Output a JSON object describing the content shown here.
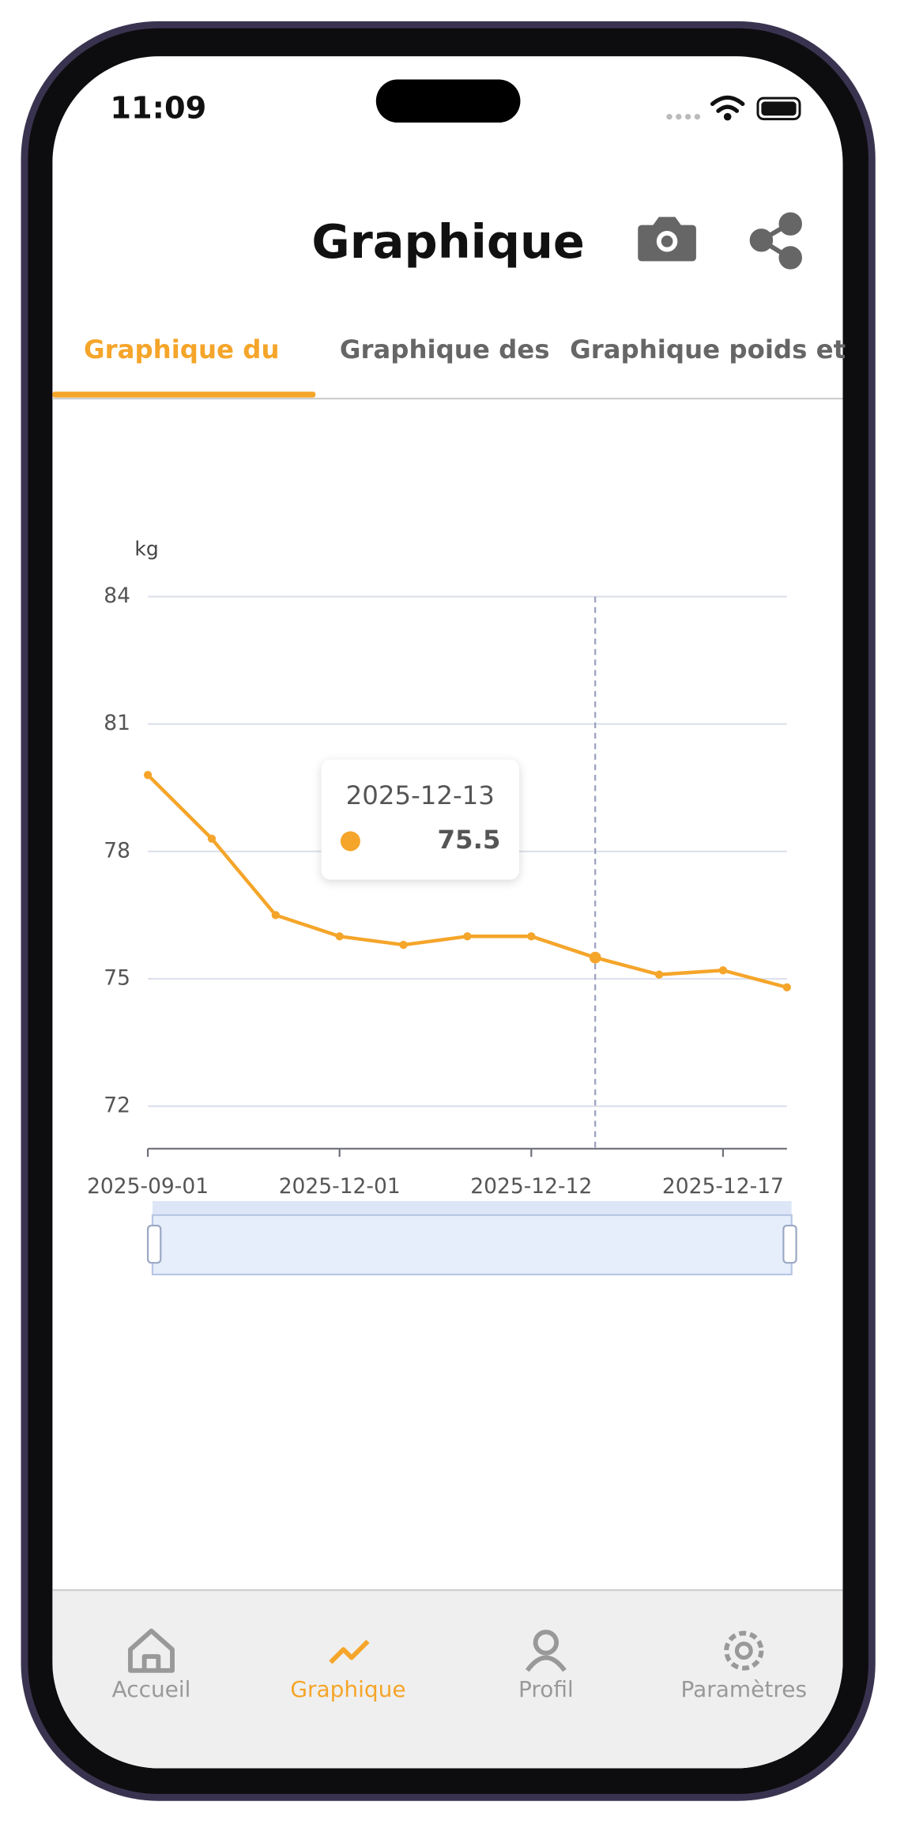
{
  "status_bar": {
    "time": "11:09"
  },
  "header": {
    "title": "Graphique"
  },
  "tabs": [
    "Graphique du",
    "Graphique des",
    "Graphique poids et"
  ],
  "chart_data": {
    "type": "line",
    "y_label": "kg",
    "categories": [
      "2025-09-01",
      null,
      null,
      "2025-12-01",
      null,
      null,
      "2025-12-12",
      null,
      null,
      "2025-12-17",
      null
    ],
    "values": [
      79.8,
      78.3,
      76.5,
      76.0,
      75.8,
      76.0,
      76.0,
      75.5,
      75.1,
      75.2,
      74.8
    ],
    "color": "#f5a52a",
    "ylim": [
      71,
      84
    ],
    "yticks": [
      72,
      75,
      78,
      81,
      84
    ],
    "grid": true,
    "tooltip": {
      "category": "2025-12-13",
      "value": 75.5
    }
  },
  "tab_bar": [
    "Accueil",
    "Graphique",
    "Profil",
    "Paramètres"
  ]
}
